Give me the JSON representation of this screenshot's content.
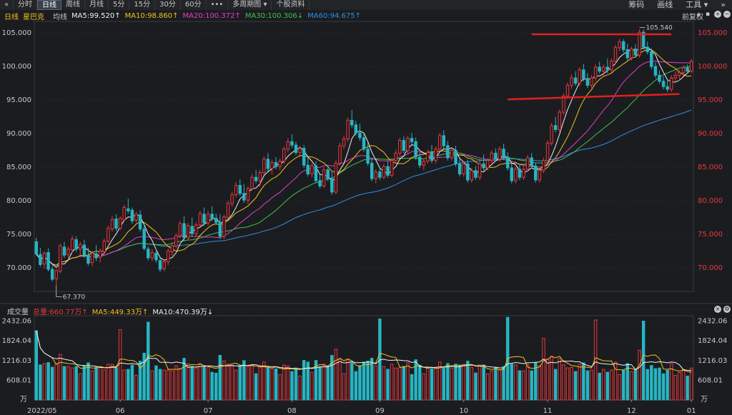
{
  "toolbar": {
    "nav_back": "«",
    "tabs": [
      {
        "label": "分时",
        "active": false
      },
      {
        "label": "日线",
        "active": true
      },
      {
        "label": "周线",
        "active": false
      },
      {
        "label": "月线",
        "active": false
      },
      {
        "label": "5分",
        "active": false
      },
      {
        "label": "15分",
        "active": false
      },
      {
        "label": "30分",
        "active": false
      },
      {
        "label": "60分",
        "active": false
      },
      {
        "label": "•••",
        "active": false
      },
      {
        "label": "多周期图 ▾",
        "active": false
      },
      {
        "label": "个股资料",
        "active": false
      }
    ],
    "right": [
      "筹码",
      "画线",
      "工具 ▾",
      "»"
    ]
  },
  "legend": {
    "period": "日线",
    "name": "星巴克",
    "avg_label": "均线",
    "ma": [
      {
        "text": "MA5:99.520↑",
        "color": "#f0f0f0"
      },
      {
        "text": "MA10:98.860↑",
        "color": "#f2c21b"
      },
      {
        "text": "MA20:100.372↑",
        "color": "#e040c8"
      },
      {
        "text": "MA30:100.306↓",
        "color": "#3ec24a"
      },
      {
        "text": "MA60:94.675↑",
        "color": "#2e8fe0"
      }
    ],
    "adjust": "前复权",
    "right_icons": [
      "lock-icon",
      "delete-icon",
      "plus-icon",
      "minus-icon"
    ]
  },
  "colors": {
    "up": "#e8393c",
    "down": "#27b5c2",
    "axis_up": "#e8393c",
    "grid": "#3a3b40",
    "annot": "#e02020"
  },
  "chart_data": {
    "type": "candlestick",
    "ylim": [
      66.5,
      106.5
    ],
    "y_ticks": [
      "105.000",
      "100.000",
      "95.000",
      "90.000",
      "85.000",
      "80.000",
      "75.000",
      "70.000"
    ],
    "x_ticks": [
      "2022/05",
      "06",
      "07",
      "08",
      "09",
      "10",
      "11",
      "12",
      "01"
    ],
    "annotations": {
      "high": "105.540",
      "low": "67.370"
    },
    "candles_ohlc": [
      [
        73.9,
        74.5,
        71.8,
        72.1
      ],
      [
        72.0,
        73.0,
        70.2,
        70.5
      ],
      [
        70.6,
        72.5,
        69.9,
        72.2
      ],
      [
        72.3,
        72.9,
        69.5,
        69.8
      ],
      [
        69.8,
        70.4,
        68.0,
        68.3
      ],
      [
        68.4,
        69.9,
        67.4,
        69.6
      ],
      [
        69.5,
        73.6,
        69.2,
        73.3
      ],
      [
        73.1,
        73.9,
        71.5,
        71.9
      ],
      [
        72.0,
        73.2,
        71.2,
        72.8
      ],
      [
        72.7,
        74.8,
        72.3,
        74.3
      ],
      [
        74.2,
        74.7,
        72.4,
        72.8
      ],
      [
        72.8,
        73.9,
        71.9,
        73.5
      ],
      [
        73.4,
        74.2,
        71.5,
        71.9
      ],
      [
        71.9,
        73.0,
        70.3,
        70.7
      ],
      [
        70.8,
        72.5,
        70.2,
        72.2
      ],
      [
        72.1,
        73.4,
        71.0,
        71.5
      ],
      [
        71.6,
        72.9,
        70.8,
        72.5
      ],
      [
        72.4,
        74.4,
        72.1,
        74.0
      ],
      [
        74.0,
        76.3,
        73.6,
        75.9
      ],
      [
        75.8,
        77.7,
        75.4,
        77.2
      ],
      [
        77.3,
        78.0,
        75.5,
        75.9
      ],
      [
        75.9,
        77.7,
        75.6,
        77.4
      ],
      [
        77.2,
        79.4,
        76.9,
        79.0
      ],
      [
        78.8,
        80.3,
        78.1,
        78.5
      ],
      [
        78.6,
        79.0,
        76.6,
        77.0
      ],
      [
        77.1,
        78.4,
        76.7,
        78.0
      ],
      [
        77.9,
        78.6,
        75.4,
        75.8
      ],
      [
        75.8,
        76.5,
        72.6,
        72.9
      ],
      [
        72.8,
        73.2,
        71.1,
        71.5
      ],
      [
        71.5,
        72.8,
        71.0,
        72.3
      ],
      [
        72.2,
        72.9,
        70.8,
        71.2
      ],
      [
        71.1,
        71.7,
        69.4,
        69.8
      ],
      [
        69.9,
        71.3,
        69.5,
        70.9
      ],
      [
        70.9,
        72.9,
        70.4,
        72.5
      ],
      [
        72.4,
        73.8,
        71.8,
        73.3
      ],
      [
        73.3,
        75.2,
        72.9,
        74.8
      ],
      [
        74.8,
        77.0,
        74.4,
        76.6
      ],
      [
        76.6,
        77.7,
        74.1,
        74.5
      ],
      [
        74.5,
        76.7,
        74.2,
        76.3
      ],
      [
        76.2,
        77.5,
        74.7,
        75.1
      ],
      [
        75.1,
        76.8,
        74.6,
        76.4
      ],
      [
        76.4,
        78.5,
        76.1,
        78.1
      ],
      [
        78.0,
        79.0,
        76.3,
        76.7
      ],
      [
        76.7,
        78.5,
        76.3,
        78.0
      ],
      [
        78.0,
        79.2,
        77.0,
        77.4
      ],
      [
        77.4,
        78.1,
        76.4,
        76.8
      ],
      [
        76.8,
        78.0,
        74.3,
        74.7
      ],
      [
        74.7,
        77.9,
        74.3,
        77.6
      ],
      [
        77.5,
        80.0,
        77.2,
        79.6
      ],
      [
        79.6,
        81.4,
        79.1,
        80.9
      ],
      [
        80.9,
        82.8,
        80.5,
        82.3
      ],
      [
        82.3,
        83.2,
        80.7,
        81.1
      ],
      [
        81.1,
        82.5,
        79.7,
        80.1
      ],
      [
        80.1,
        82.2,
        79.5,
        81.8
      ],
      [
        81.8,
        84.0,
        81.5,
        83.5
      ],
      [
        83.5,
        84.6,
        82.6,
        83.0
      ],
      [
        83.0,
        84.6,
        82.1,
        84.2
      ],
      [
        84.2,
        86.6,
        83.8,
        86.2
      ],
      [
        86.2,
        87.1,
        84.4,
        84.8
      ],
      [
        84.8,
        86.1,
        83.9,
        85.7
      ],
      [
        85.7,
        86.5,
        84.7,
        85.1
      ],
      [
        85.1,
        86.3,
        84.6,
        85.9
      ],
      [
        85.9,
        88.1,
        85.5,
        87.7
      ],
      [
        87.7,
        89.3,
        87.2,
        88.8
      ],
      [
        88.8,
        89.9,
        87.9,
        88.3
      ],
      [
        88.3,
        88.8,
        86.8,
        87.2
      ],
      [
        87.2,
        88.2,
        86.5,
        87.8
      ],
      [
        87.8,
        88.3,
        84.9,
        85.3
      ],
      [
        85.3,
        86.4,
        83.6,
        84.0
      ],
      [
        84.0,
        85.6,
        83.5,
        85.2
      ],
      [
        85.2,
        85.9,
        82.6,
        83.0
      ],
      [
        83.0,
        83.9,
        81.8,
        82.2
      ],
      [
        82.2,
        85.0,
        81.9,
        84.6
      ],
      [
        84.6,
        85.3,
        82.9,
        83.3
      ],
      [
        83.3,
        84.4,
        80.9,
        81.3
      ],
      [
        81.3,
        86.0,
        81.0,
        85.6
      ],
      [
        85.6,
        88.6,
        85.2,
        88.2
      ],
      [
        88.2,
        89.7,
        87.7,
        89.2
      ],
      [
        89.2,
        92.4,
        88.8,
        92.0
      ],
      [
        92.0,
        93.5,
        90.8,
        91.3
      ],
      [
        91.3,
        91.9,
        89.7,
        90.1
      ],
      [
        90.1,
        91.5,
        88.9,
        89.4
      ],
      [
        89.4,
        90.0,
        87.3,
        87.7
      ],
      [
        87.7,
        88.7,
        85.2,
        85.6
      ],
      [
        85.6,
        86.4,
        82.9,
        83.3
      ],
      [
        83.3,
        84.7,
        82.6,
        84.3
      ],
      [
        84.3,
        85.0,
        83.1,
        83.5
      ],
      [
        83.5,
        85.5,
        83.2,
        85.1
      ],
      [
        85.1,
        86.0,
        83.4,
        83.8
      ],
      [
        83.8,
        86.4,
        83.5,
        86.0
      ],
      [
        86.0,
        87.6,
        85.6,
        87.1
      ],
      [
        87.1,
        89.4,
        86.7,
        89.0
      ],
      [
        89.0,
        89.6,
        87.1,
        87.5
      ],
      [
        87.5,
        89.7,
        87.1,
        89.3
      ],
      [
        89.3,
        90.1,
        88.4,
        88.8
      ],
      [
        88.8,
        89.4,
        86.1,
        86.5
      ],
      [
        86.5,
        87.1,
        84.9,
        85.3
      ],
      [
        85.3,
        86.3,
        84.6,
        85.9
      ],
      [
        85.9,
        87.6,
        85.5,
        87.2
      ],
      [
        87.2,
        88.3,
        85.6,
        86.0
      ],
      [
        86.0,
        88.1,
        85.6,
        87.7
      ],
      [
        87.7,
        90.1,
        87.3,
        89.7
      ],
      [
        89.7,
        90.5,
        87.8,
        88.2
      ],
      [
        88.2,
        88.9,
        86.0,
        86.4
      ],
      [
        86.4,
        87.9,
        86.0,
        87.5
      ],
      [
        87.5,
        88.2,
        85.1,
        85.5
      ],
      [
        85.5,
        86.2,
        83.6,
        84.0
      ],
      [
        84.0,
        85.9,
        83.6,
        85.5
      ],
      [
        85.5,
        86.1,
        82.7,
        83.1
      ],
      [
        83.1,
        84.9,
        82.7,
        84.5
      ],
      [
        84.5,
        85.2,
        83.1,
        83.5
      ],
      [
        83.5,
        85.9,
        83.1,
        85.5
      ],
      [
        85.5,
        86.9,
        84.5,
        84.9
      ],
      [
        84.9,
        86.4,
        84.5,
        86.0
      ],
      [
        86.0,
        87.5,
        85.6,
        87.1
      ],
      [
        87.1,
        87.8,
        85.8,
        86.2
      ],
      [
        86.2,
        88.1,
        85.8,
        87.7
      ],
      [
        87.7,
        88.5,
        86.1,
        86.5
      ],
      [
        86.5,
        87.2,
        84.5,
        84.9
      ],
      [
        84.9,
        85.6,
        82.6,
        83.0
      ],
      [
        83.0,
        85.1,
        82.6,
        84.7
      ],
      [
        84.7,
        85.5,
        83.1,
        83.5
      ],
      [
        83.5,
        85.1,
        83.1,
        84.7
      ],
      [
        84.7,
        86.8,
        84.3,
        86.4
      ],
      [
        86.4,
        87.1,
        84.8,
        85.2
      ],
      [
        85.2,
        85.7,
        82.7,
        83.1
      ],
      [
        83.1,
        84.9,
        82.7,
        84.5
      ],
      [
        84.5,
        86.4,
        84.1,
        86.0
      ],
      [
        86.0,
        89.0,
        85.6,
        88.6
      ],
      [
        88.6,
        91.6,
        88.2,
        91.2
      ],
      [
        91.2,
        92.5,
        90.2,
        90.6
      ],
      [
        90.6,
        93.6,
        90.2,
        93.2
      ],
      [
        93.2,
        96.0,
        92.8,
        95.6
      ],
      [
        95.6,
        97.6,
        95.2,
        97.2
      ],
      [
        97.2,
        98.8,
        96.7,
        98.3
      ],
      [
        98.3,
        99.3,
        97.1,
        97.5
      ],
      [
        97.5,
        99.9,
        97.1,
        99.5
      ],
      [
        99.5,
        100.4,
        97.8,
        98.2
      ],
      [
        98.2,
        99.0,
        96.8,
        97.2
      ],
      [
        97.2,
        98.7,
        96.8,
        98.3
      ],
      [
        98.3,
        100.3,
        97.9,
        99.9
      ],
      [
        99.9,
        100.7,
        98.9,
        99.3
      ],
      [
        99.3,
        100.3,
        98.4,
        99.9
      ],
      [
        99.9,
        101.2,
        99.0,
        99.5
      ],
      [
        99.5,
        101.2,
        99.1,
        100.8
      ],
      [
        100.8,
        103.2,
        100.4,
        102.8
      ],
      [
        102.8,
        104.1,
        102.3,
        103.7
      ],
      [
        103.7,
        104.1,
        102.1,
        102.5
      ],
      [
        102.5,
        103.4,
        100.9,
        101.3
      ],
      [
        101.3,
        103.0,
        100.9,
        102.6
      ],
      [
        102.6,
        103.3,
        101.3,
        101.7
      ],
      [
        101.7,
        105.5,
        101.3,
        105.1
      ],
      [
        105.1,
        105.5,
        102.5,
        102.9
      ],
      [
        102.9,
        103.7,
        101.8,
        102.2
      ],
      [
        102.2,
        102.7,
        99.6,
        100.0
      ],
      [
        100.0,
        100.6,
        98.3,
        98.7
      ],
      [
        98.7,
        99.4,
        97.4,
        97.8
      ],
      [
        97.8,
        98.5,
        96.6,
        97.0
      ],
      [
        97.0,
        98.2,
        96.2,
        96.6
      ],
      [
        96.6,
        98.7,
        96.2,
        98.3
      ],
      [
        98.3,
        99.3,
        97.7,
        98.7
      ],
      [
        98.7,
        99.5,
        97.9,
        99.1
      ],
      [
        99.1,
        100.2,
        98.6,
        99.8
      ],
      [
        99.8,
        100.3,
        98.9,
        99.3
      ],
      [
        99.3,
        101.1,
        99.0,
        100.8
      ]
    ],
    "volume_ticks": [
      "2432.06",
      "1824.04",
      "1216.03",
      "608.01"
    ],
    "volume_unit": "万",
    "volume_ylim": [
      0,
      2600
    ],
    "volume_legend": {
      "label": "成交量",
      "total": "总量:660.77万↑",
      "ma5": "MA5:449.33万↑",
      "ma10": "MA10:470.39万↓"
    },
    "annotation_lines": [
      {
        "from": [
          124,
          104.8
        ],
        "to": [
          159,
          104.8
        ]
      },
      {
        "from": [
          118,
          95.1
        ],
        "to": [
          161,
          95.9
        ]
      }
    ]
  }
}
